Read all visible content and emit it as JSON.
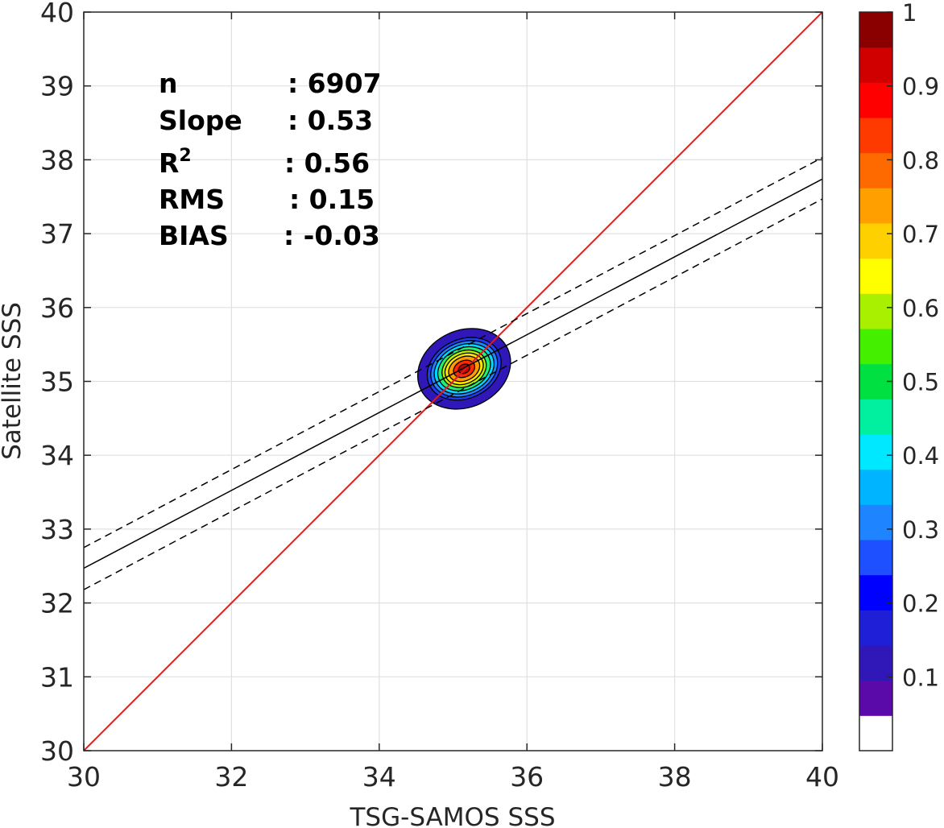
{
  "chart_data": {
    "type": "contour",
    "xlabel": "TSG-SAMOS SSS",
    "ylabel": "Satellite SSS",
    "xlim": [
      30,
      40
    ],
    "ylim": [
      30,
      40
    ],
    "xticks": [
      30,
      32,
      34,
      36,
      38,
      40
    ],
    "yticks": [
      30,
      31,
      32,
      33,
      34,
      35,
      36,
      37,
      38,
      39,
      40
    ],
    "grid": true,
    "stats": [
      {
        "label": "n",
        "value": ": 6907"
      },
      {
        "label": "Slope",
        "value": ": 0.53"
      },
      {
        "label": "R",
        "sup": "2",
        "value": ": 0.56"
      },
      {
        "label": "RMS",
        "value": ": 0.15"
      },
      {
        "label": "BIAS",
        "value": ": -0.03"
      }
    ],
    "one_to_one_line": {
      "color": "#d62020",
      "from": [
        30,
        30
      ],
      "to": [
        40,
        40
      ]
    },
    "regression": {
      "fit": {
        "from": [
          30,
          32.47
        ],
        "to": [
          40,
          37.74
        ]
      },
      "upper": {
        "from": [
          30,
          32.75
        ],
        "to": [
          40,
          38.03
        ]
      },
      "lower": {
        "from": [
          30,
          32.18
        ],
        "to": [
          40,
          37.47
        ]
      }
    },
    "density_contours": {
      "center": [
        35.15,
        35.17
      ],
      "levels": [
        {
          "level": 0.05,
          "rx": 0.65,
          "ry": 0.52,
          "color": "#3018b8"
        },
        {
          "level": 0.15,
          "rx": 0.52,
          "ry": 0.4,
          "color": "#1f3cf0"
        },
        {
          "level": 0.25,
          "rx": 0.47,
          "ry": 0.36,
          "color": "#1f84ff"
        },
        {
          "level": 0.35,
          "rx": 0.42,
          "ry": 0.32,
          "color": "#00d8ff"
        },
        {
          "level": 0.45,
          "rx": 0.37,
          "ry": 0.28,
          "color": "#22f070"
        },
        {
          "level": 0.55,
          "rx": 0.31,
          "ry": 0.24,
          "color": "#b8f000"
        },
        {
          "level": 0.65,
          "rx": 0.27,
          "ry": 0.2,
          "color": "#ffe800"
        },
        {
          "level": 0.75,
          "rx": 0.22,
          "ry": 0.16,
          "color": "#ff9a00"
        },
        {
          "level": 0.85,
          "rx": 0.15,
          "ry": 0.11,
          "color": "#ff2a00"
        },
        {
          "level": 0.95,
          "rx": 0.08,
          "ry": 0.06,
          "color": "#c80000"
        }
      ]
    },
    "colorbar": {
      "tick_labels": [
        "0.1",
        "0.2",
        "0.3",
        "0.4",
        "0.5",
        "0.6",
        "0.7",
        "0.8",
        "0.9",
        "1"
      ],
      "tick_values": [
        0.1,
        0.2,
        0.3,
        0.4,
        0.5,
        0.6,
        0.7,
        0.8,
        0.9,
        1.0
      ],
      "bins": [
        "#ffffff",
        "#5a0aa8",
        "#3018b8",
        "#1f1fd8",
        "#0000ff",
        "#1e50ff",
        "#1f84ff",
        "#00b4ff",
        "#00e8ff",
        "#00f0a0",
        "#00e040",
        "#44f000",
        "#a8f000",
        "#ffff00",
        "#ffd000",
        "#ffa000",
        "#ff6a00",
        "#ff3a00",
        "#ff0000",
        "#d00000",
        "#8a0000"
      ]
    }
  }
}
